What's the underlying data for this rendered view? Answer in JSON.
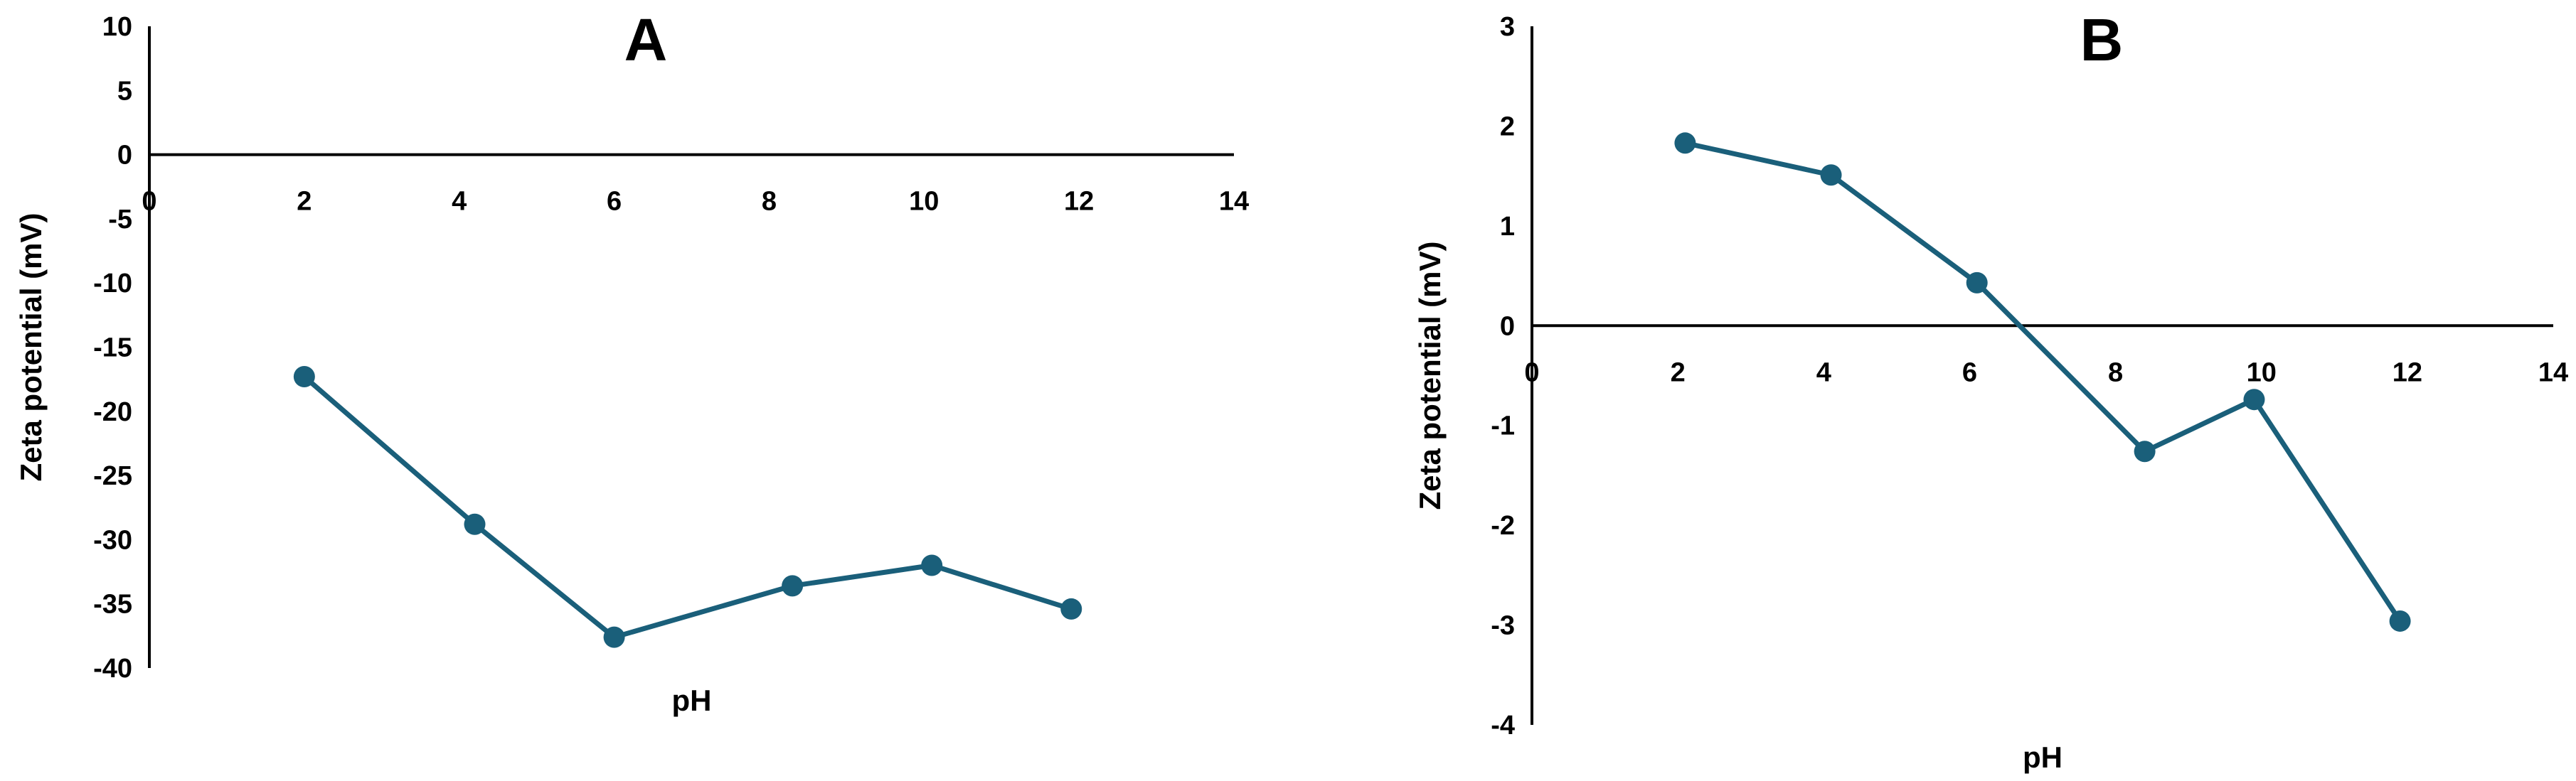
{
  "chart_data": [
    {
      "type": "line",
      "title": "A",
      "xlabel": "pH",
      "ylabel": "Zeta potential (mV)",
      "xlim": [
        0,
        14
      ],
      "ylim": [
        -40,
        10
      ],
      "xticks": [
        0,
        2,
        4,
        6,
        8,
        10,
        12,
        14
      ],
      "yticks": [
        10,
        5,
        0,
        -5,
        -10,
        -15,
        -20,
        -25,
        -30,
        -35,
        -40
      ],
      "xtick_labels": [
        "0",
        "2",
        "4",
        "6",
        "8",
        "10",
        "12",
        "14"
      ],
      "ytick_labels": [
        "10",
        "5",
        "0",
        "-5",
        "-10",
        "-15",
        "-20",
        "-25",
        "-30",
        "-35",
        "-40"
      ],
      "grid": false,
      "series": [
        {
          "color": "#1a5f7a",
          "x": [
            2.0,
            4.2,
            6.0,
            8.3,
            10.1,
            11.9
          ],
          "y": [
            -17.3,
            -28.8,
            -37.6,
            -33.6,
            -32.0,
            -35.4
          ]
        }
      ]
    },
    {
      "type": "line",
      "title": "B",
      "xlabel": "pH",
      "ylabel": "Zeta potential (mV)",
      "xlim": [
        0,
        14
      ],
      "ylim": [
        -4,
        3
      ],
      "xticks": [
        0,
        2,
        4,
        6,
        8,
        10,
        12,
        14
      ],
      "yticks": [
        3,
        2,
        1,
        0,
        -1,
        -2,
        -3,
        -4
      ],
      "xtick_labels": [
        "0",
        "2",
        "4",
        "6",
        "8",
        "10",
        "12",
        "14"
      ],
      "ytick_labels": [
        "3",
        "2",
        "1",
        "0",
        "-1",
        "-2",
        "-3",
        "-4"
      ],
      "grid": false,
      "series": [
        {
          "color": "#1a5f7a",
          "x": [
            2.1,
            4.1,
            6.1,
            8.4,
            9.9,
            11.9
          ],
          "y": [
            1.83,
            1.51,
            0.43,
            -1.26,
            -0.74,
            -2.96
          ]
        }
      ]
    }
  ]
}
